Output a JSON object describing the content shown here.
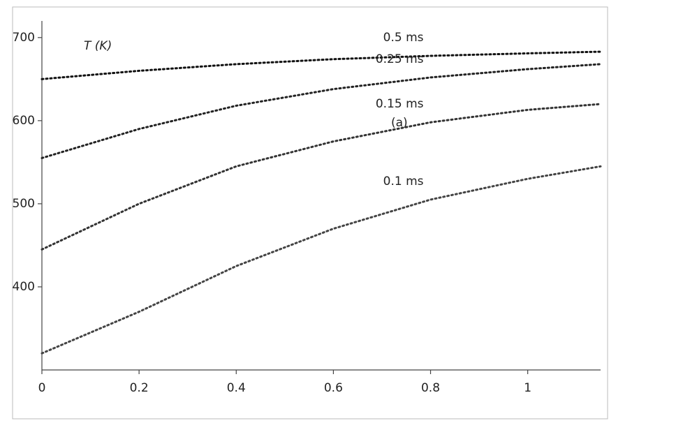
{
  "chart_data": {
    "type": "line",
    "y_label": "T (K)",
    "panel_label": "(a)",
    "x": [
      0,
      0.2,
      0.4,
      0.6,
      0.8,
      1,
      1.15
    ],
    "series": [
      {
        "name": "0.5 ms",
        "color": "#111111",
        "values": [
          650,
          660,
          668,
          674,
          678,
          681,
          683
        ]
      },
      {
        "name": "0.25 ms",
        "color": "#222222",
        "values": [
          555,
          590,
          618,
          638,
          652,
          662,
          668
        ]
      },
      {
        "name": "0.15 ms",
        "color": "#333333",
        "values": [
          445,
          500,
          545,
          575,
          598,
          613,
          620
        ]
      },
      {
        "name": "0.1 ms",
        "color": "#444444",
        "values": [
          320,
          370,
          425,
          470,
          505,
          530,
          545
        ]
      }
    ],
    "xlim": [
      0,
      1.15
    ],
    "xticks": [
      0,
      0.2,
      0.4,
      0.6,
      0.8,
      1
    ],
    "ylim": [
      300,
      720
    ],
    "yticks": [
      400,
      500,
      600,
      700
    ]
  }
}
